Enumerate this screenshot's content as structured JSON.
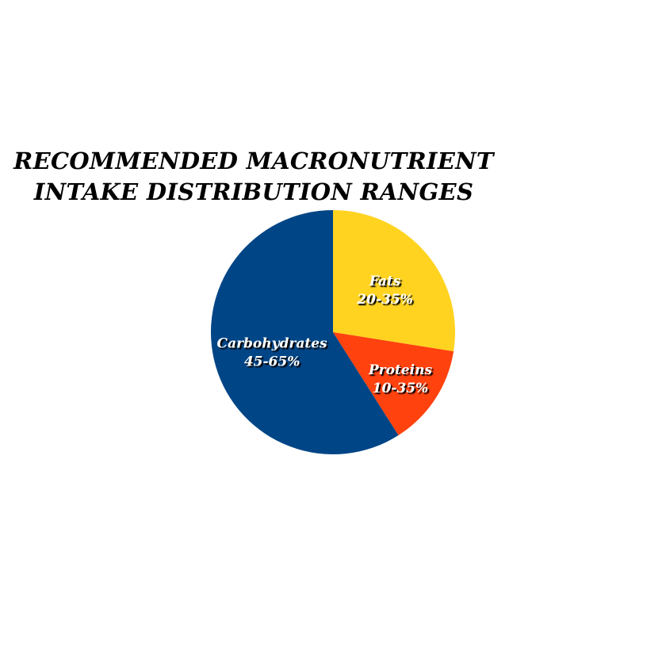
{
  "chart_data": {
    "type": "pie",
    "title_lines": [
      "RECOMMENDED MACRONUTRIENT",
      "INTAKE DISTRIBUTION RANGES"
    ],
    "slices": [
      {
        "name": "Fats",
        "range_label": "20-35%",
        "value": 27.5,
        "color": "#FFD320"
      },
      {
        "name": "Proteins",
        "range_label": "10-35%",
        "value": 13.5,
        "color": "#FF420E"
      },
      {
        "name": "Carbohydrates",
        "range_label": "45-65%",
        "value": 59.0,
        "color": "#004586"
      }
    ],
    "start_angle": "12 o'clock",
    "direction": "clockwise",
    "legend": "none"
  }
}
